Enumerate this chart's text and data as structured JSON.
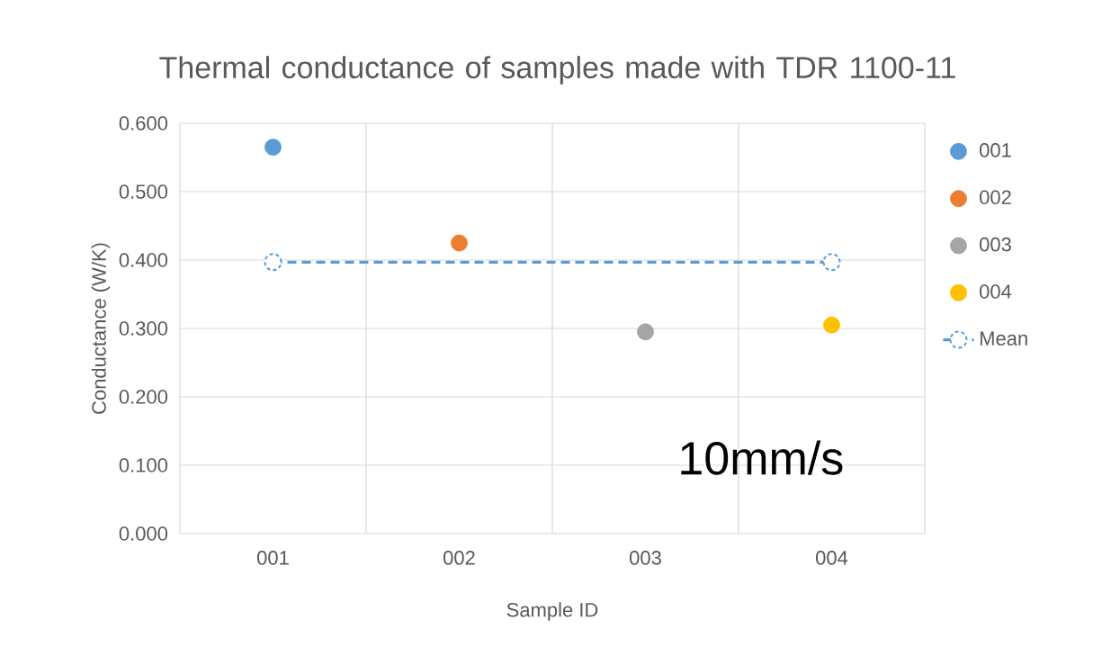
{
  "chart_data": {
    "type": "scatter",
    "title": "Thermal conductance of samples made with TDR 1100-11",
    "xlabel": "Sample ID",
    "ylabel": "Conductance (W/K)",
    "categories": [
      "001",
      "002",
      "003",
      "004"
    ],
    "series": [
      {
        "name": "001",
        "color": "#5b9bd5",
        "values": [
          0.565,
          null,
          null,
          null
        ]
      },
      {
        "name": "002",
        "color": "#ed7d31",
        "values": [
          null,
          0.425,
          null,
          null
        ]
      },
      {
        "name": "003",
        "color": "#a5a5a5",
        "values": [
          null,
          null,
          0.295,
          null
        ]
      },
      {
        "name": "004",
        "color": "#ffc000",
        "values": [
          null,
          null,
          null,
          0.305
        ]
      },
      {
        "name": "Mean",
        "type": "line",
        "line_style": "dashed",
        "color": "#5b9bd5",
        "x": [
          "001",
          "004"
        ],
        "values": [
          0.397,
          0.397
        ]
      }
    ],
    "ylim": [
      0,
      0.6
    ],
    "yticks": [
      {
        "value": 0,
        "label": "0.000"
      },
      {
        "value": 0.1,
        "label": "0.100"
      },
      {
        "value": 0.2,
        "label": "0.200"
      },
      {
        "value": 0.3,
        "label": "0.300"
      },
      {
        "value": 0.4,
        "label": "0.400"
      },
      {
        "value": 0.5,
        "label": "0.500"
      },
      {
        "value": 0.6,
        "label": "0.600"
      }
    ],
    "grid": true,
    "legend": "right",
    "marker": "circle",
    "annotations": [
      "10mm/s"
    ]
  }
}
